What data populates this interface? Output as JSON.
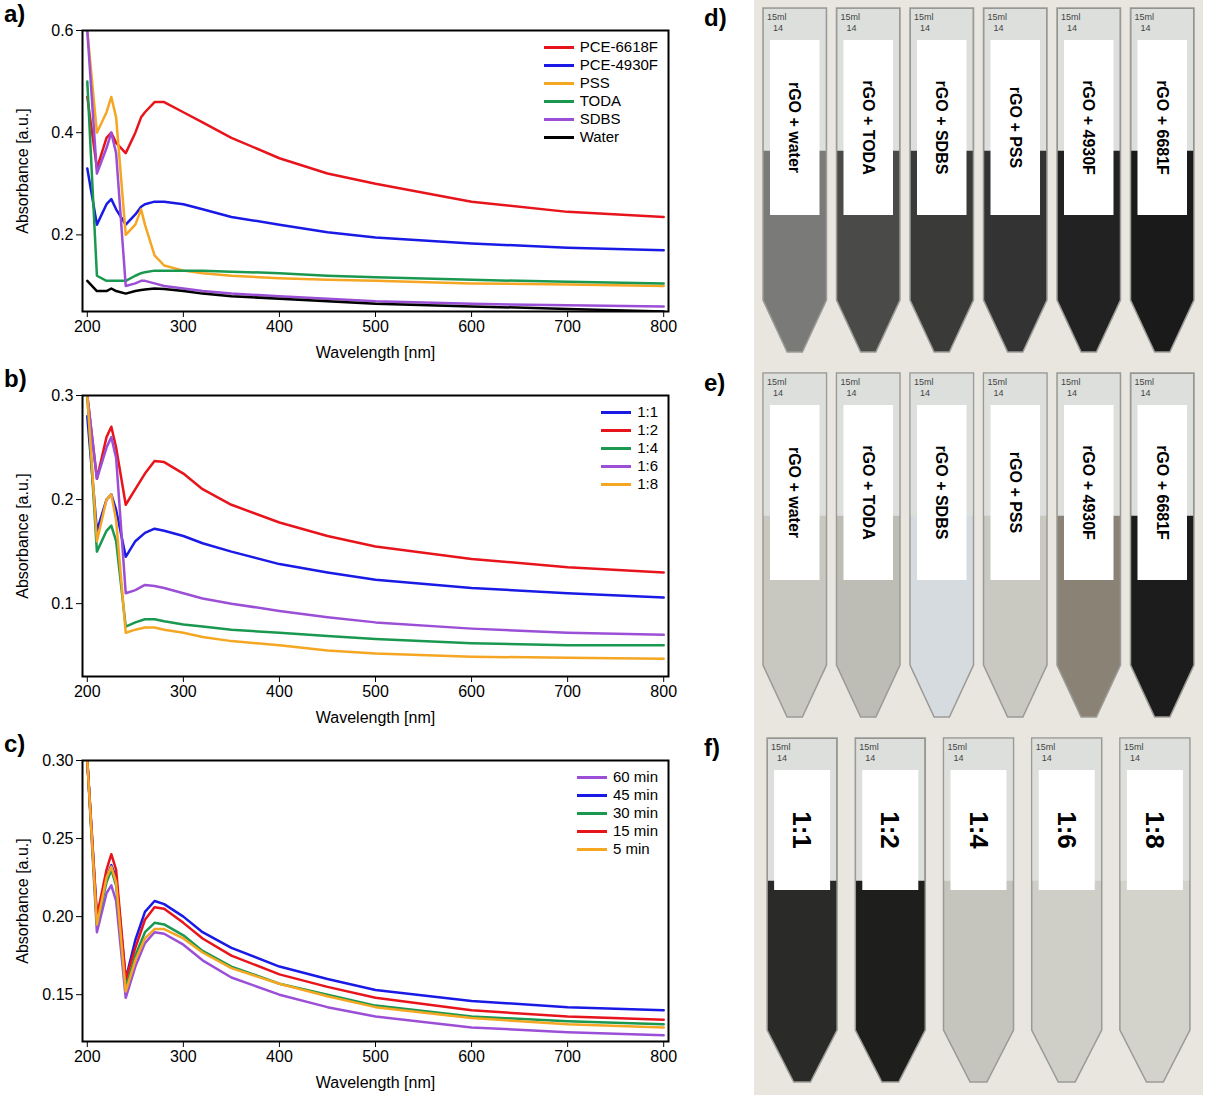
{
  "chart_data": [
    {
      "type": "line",
      "panel_label": "a)",
      "x_label": "Wavelength [nm]",
      "y_label": "Absorbance [a.u.]",
      "x": [
        200,
        210,
        220,
        225,
        230,
        240,
        250,
        256,
        260,
        270,
        280,
        300,
        320,
        350,
        400,
        450,
        500,
        600,
        700,
        800
      ],
      "series": [
        {
          "name": "PCE-6618F",
          "color": "#e8141c",
          "values": [
            0.47,
            0.33,
            0.39,
            0.4,
            0.38,
            0.36,
            0.4,
            0.43,
            0.44,
            0.46,
            0.46,
            0.44,
            0.42,
            0.39,
            0.35,
            0.32,
            0.3,
            0.265,
            0.245,
            0.235
          ]
        },
        {
          "name": "PCE-4930F",
          "color": "#1a1ae6",
          "values": [
            0.33,
            0.22,
            0.26,
            0.27,
            0.25,
            0.22,
            0.24,
            0.255,
            0.26,
            0.265,
            0.265,
            0.26,
            0.25,
            0.235,
            0.22,
            0.205,
            0.195,
            0.183,
            0.175,
            0.17
          ]
        },
        {
          "name": "PSS",
          "color": "#f5a623",
          "values": [
            0.6,
            0.4,
            0.44,
            0.47,
            0.43,
            0.2,
            0.22,
            0.25,
            0.22,
            0.16,
            0.14,
            0.13,
            0.125,
            0.12,
            0.115,
            0.112,
            0.11,
            0.105,
            0.103,
            0.1
          ]
        },
        {
          "name": "TODA",
          "color": "#1a9850",
          "values": [
            0.5,
            0.12,
            0.11,
            0.11,
            0.11,
            0.11,
            0.12,
            0.125,
            0.127,
            0.13,
            0.13,
            0.13,
            0.13,
            0.128,
            0.125,
            0.12,
            0.117,
            0.112,
            0.108,
            0.105
          ]
        },
        {
          "name": "SDBS",
          "color": "#9b4fd6",
          "values": [
            0.6,
            0.32,
            0.37,
            0.4,
            0.36,
            0.1,
            0.105,
            0.11,
            0.11,
            0.105,
            0.1,
            0.095,
            0.09,
            0.085,
            0.08,
            0.075,
            0.07,
            0.065,
            0.062,
            0.06
          ]
        },
        {
          "name": "Water",
          "color": "#000000",
          "values": [
            0.11,
            0.09,
            0.09,
            0.095,
            0.09,
            0.085,
            0.09,
            0.092,
            0.093,
            0.095,
            0.094,
            0.09,
            0.085,
            0.08,
            0.075,
            0.07,
            0.065,
            0.06,
            0.055,
            0.05
          ]
        }
      ],
      "xlim": [
        195,
        805
      ],
      "xticks": [
        200,
        300,
        400,
        500,
        600,
        700,
        800
      ],
      "ylim": [
        0.05,
        0.6
      ],
      "yticks": [
        0.2,
        0.4,
        0.6
      ],
      "legend": "top-right"
    },
    {
      "type": "line",
      "panel_label": "b)",
      "x_label": "Wavelength [nm]",
      "y_label": "Absorbance [a.u.]",
      "x": [
        200,
        210,
        220,
        225,
        230,
        240,
        250,
        260,
        270,
        280,
        300,
        320,
        350,
        400,
        450,
        500,
        600,
        700,
        800
      ],
      "series": [
        {
          "name": "1:1",
          "color": "#1a1ae6",
          "values": [
            0.28,
            0.17,
            0.2,
            0.205,
            0.19,
            0.145,
            0.16,
            0.168,
            0.172,
            0.17,
            0.165,
            0.158,
            0.15,
            0.138,
            0.13,
            0.123,
            0.115,
            0.11,
            0.106
          ]
        },
        {
          "name": "1:2",
          "color": "#e8141c",
          "values": [
            0.3,
            0.22,
            0.26,
            0.27,
            0.25,
            0.195,
            0.21,
            0.225,
            0.237,
            0.236,
            0.225,
            0.21,
            0.195,
            0.178,
            0.165,
            0.155,
            0.143,
            0.135,
            0.13
          ]
        },
        {
          "name": "1:4",
          "color": "#1a9850",
          "values": [
            0.3,
            0.15,
            0.17,
            0.175,
            0.16,
            0.078,
            0.082,
            0.085,
            0.085,
            0.083,
            0.08,
            0.078,
            0.075,
            0.072,
            0.069,
            0.066,
            0.062,
            0.06,
            0.06
          ]
        },
        {
          "name": "1:6",
          "color": "#9b4fd6",
          "values": [
            0.3,
            0.22,
            0.25,
            0.26,
            0.24,
            0.11,
            0.113,
            0.118,
            0.117,
            0.115,
            0.11,
            0.105,
            0.1,
            0.093,
            0.087,
            0.082,
            0.076,
            0.072,
            0.07
          ]
        },
        {
          "name": "1:8",
          "color": "#f5a623",
          "values": [
            0.3,
            0.16,
            0.2,
            0.205,
            0.18,
            0.072,
            0.075,
            0.077,
            0.077,
            0.075,
            0.072,
            0.068,
            0.064,
            0.06,
            0.055,
            0.052,
            0.049,
            0.048,
            0.047
          ]
        }
      ],
      "xlim": [
        195,
        805
      ],
      "xticks": [
        200,
        300,
        400,
        500,
        600,
        700,
        800
      ],
      "ylim": [
        0.03,
        0.3
      ],
      "yticks": [
        0.1,
        0.2,
        0.3
      ],
      "legend": "top-right"
    },
    {
      "type": "line",
      "panel_label": "c)",
      "x_label": "Wavelength [nm]",
      "y_label": "Absorbance [a.u.]",
      "x": [
        200,
        210,
        220,
        225,
        230,
        240,
        250,
        260,
        270,
        280,
        300,
        320,
        350,
        400,
        450,
        500,
        600,
        700,
        800
      ],
      "series": [
        {
          "name": "60 min",
          "color": "#9b4fd6",
          "values": [
            0.3,
            0.19,
            0.215,
            0.22,
            0.21,
            0.148,
            0.168,
            0.183,
            0.19,
            0.189,
            0.182,
            0.172,
            0.161,
            0.15,
            0.142,
            0.136,
            0.129,
            0.126,
            0.124
          ]
        },
        {
          "name": "45 min",
          "color": "#1a1ae6",
          "values": [
            0.3,
            0.2,
            0.225,
            0.233,
            0.225,
            0.16,
            0.185,
            0.203,
            0.21,
            0.208,
            0.2,
            0.19,
            0.18,
            0.168,
            0.16,
            0.153,
            0.146,
            0.142,
            0.14
          ]
        },
        {
          "name": "30 min",
          "color": "#1a9850",
          "values": [
            0.3,
            0.195,
            0.222,
            0.23,
            0.22,
            0.155,
            0.175,
            0.19,
            0.196,
            0.195,
            0.188,
            0.178,
            0.168,
            0.157,
            0.15,
            0.143,
            0.136,
            0.133,
            0.131
          ]
        },
        {
          "name": "15 min",
          "color": "#e8141c",
          "values": [
            0.3,
            0.2,
            0.23,
            0.24,
            0.23,
            0.16,
            0.18,
            0.198,
            0.206,
            0.205,
            0.196,
            0.186,
            0.175,
            0.163,
            0.155,
            0.148,
            0.14,
            0.136,
            0.134
          ]
        },
        {
          "name": "5 min",
          "color": "#f5a623",
          "values": [
            0.3,
            0.195,
            0.225,
            0.232,
            0.222,
            0.152,
            0.172,
            0.186,
            0.192,
            0.192,
            0.186,
            0.177,
            0.167,
            0.157,
            0.149,
            0.142,
            0.135,
            0.131,
            0.129
          ]
        }
      ],
      "xlim": [
        195,
        805
      ],
      "xticks": [
        200,
        300,
        400,
        500,
        600,
        700,
        800
      ],
      "ylim": [
        0.12,
        0.3
      ],
      "yticks": [
        0.15,
        {
          "value": 0.2,
          "label": "0.20"
        },
        0.25,
        {
          "value": 0.3,
          "label": "0.30"
        }
      ],
      "legend": "top-right"
    }
  ],
  "photos": [
    {
      "panel_label": "d)",
      "tube_marks": [
        "15ml",
        "14"
      ],
      "tubes": [
        {
          "label": "rGO + water",
          "color": "#7a7a78"
        },
        {
          "label": "rGO + TODA",
          "color": "#4a4a48"
        },
        {
          "label": "rGO + SDBS",
          "color": "#3a3a38"
        },
        {
          "label": "rGO + PSS",
          "color": "#333333"
        },
        {
          "label": "rGO + 4930F",
          "color": "#222222"
        },
        {
          "label": "rGO + 6681F",
          "color": "#1a1a1a"
        }
      ]
    },
    {
      "panel_label": "e)",
      "tube_marks": [
        "15ml",
        "14"
      ],
      "tubes": [
        {
          "label": "rGO + water",
          "color": "#c8c8c0"
        },
        {
          "label": "rGO + TODA",
          "color": "#bdbdb5"
        },
        {
          "label": "rGO + SDBS",
          "color": "#d6dbe0"
        },
        {
          "label": "rGO + PSS",
          "color": "#c9c9c2"
        },
        {
          "label": "rGO + 4930F",
          "color": "#8a8274"
        },
        {
          "label": "rGO + 6681F",
          "color": "#1c1c1c"
        }
      ]
    },
    {
      "panel_label": "f)",
      "tube_marks": [
        "15ml",
        "14"
      ],
      "tubes": [
        {
          "label": "1:1",
          "color": "#2a2a28"
        },
        {
          "label": "1:2",
          "color": "#1e1e1c"
        },
        {
          "label": "1:4",
          "color": "#c5c5bd"
        },
        {
          "label": "1:6",
          "color": "#cfcfc8"
        },
        {
          "label": "1:8",
          "color": "#d3d3cc"
        }
      ]
    }
  ]
}
